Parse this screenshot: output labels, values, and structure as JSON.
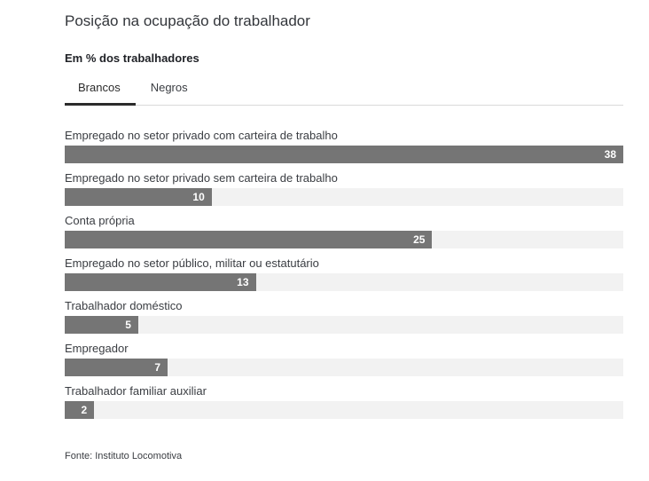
{
  "header": {
    "title": "Posição na ocupação do trabalhador",
    "subtitle": "Em % dos trabalhadores"
  },
  "tabs": [
    {
      "label": "Brancos",
      "active": true
    },
    {
      "label": "Negros",
      "active": false
    }
  ],
  "chart_data": {
    "type": "bar",
    "orientation": "horizontal",
    "title": "Posição na ocupação do trabalhador",
    "unit": "% dos trabalhadores",
    "selected_series": "Brancos",
    "categories": [
      "Empregado no setor privado com carteira de trabalho",
      "Empregado no setor privado sem carteira de trabalho",
      "Conta própria",
      "Empregado no setor público, militar ou estatutário",
      "Trabalhador doméstico",
      "Empregador",
      "Trabalhador familiar auxiliar"
    ],
    "values": [
      38,
      10,
      25,
      13,
      5,
      7,
      2
    ],
    "xlim": [
      0,
      38
    ],
    "grid": false,
    "legend": "tabs",
    "bar_color": "#757575",
    "track_color": "#f2f2f2"
  },
  "footer": {
    "source": "Fonte: Instituto Locomotiva"
  }
}
